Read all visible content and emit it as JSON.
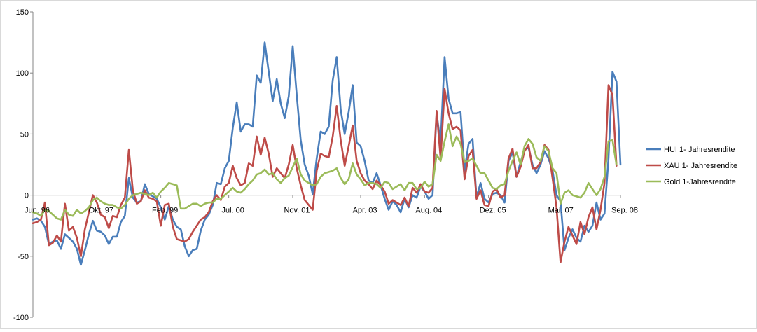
{
  "chart_data": {
    "type": "line",
    "ylim": [
      -100,
      150
    ],
    "y_ticks": [
      -100,
      -50,
      0,
      50,
      100,
      150
    ],
    "x_tick_labels": [
      {
        "label": "Jun. 96",
        "index": 0
      },
      {
        "label": "Okt. 97",
        "index": 16
      },
      {
        "label": "Feb. 99",
        "index": 32
      },
      {
        "label": "Jul. 00",
        "index": 49
      },
      {
        "label": "Nov. 01",
        "index": 65
      },
      {
        "label": "Apr. 03",
        "index": 82
      },
      {
        "label": "Aug. 04",
        "index": 98
      },
      {
        "label": "Dez. 05",
        "index": 114
      },
      {
        "label": "Mai. 07",
        "index": 131
      },
      {
        "label": "Sep. 08",
        "index": 147
      }
    ],
    "grid": false,
    "legend_position": "right",
    "series": [
      {
        "name": "HUI 1- Jahresrendite",
        "color": "#4a7ebb",
        "values": [
          -20,
          -19,
          -21,
          -26,
          -40,
          -38,
          -37,
          -44,
          -32,
          -35,
          -38,
          -44,
          -57,
          -45,
          -32,
          -21,
          -29,
          -30,
          -33,
          -40,
          -34,
          -34,
          -22,
          -17,
          14,
          -2,
          -6,
          -5,
          9,
          1,
          -1,
          -3,
          -10,
          -20,
          -9,
          -20,
          -26,
          -28,
          -42,
          -50,
          -45,
          -44,
          -29,
          -20,
          -16,
          -8,
          10,
          9,
          22,
          28,
          55,
          76,
          52,
          58,
          58,
          56,
          98,
          92,
          125,
          101,
          77,
          95,
          75,
          63,
          81,
          122,
          82,
          45,
          25,
          16,
          1,
          30,
          52,
          50,
          56,
          94,
          113,
          70,
          50,
          68,
          90,
          43,
          40,
          28,
          12,
          10,
          18,
          8,
          -3,
          -12,
          -5,
          -8,
          -14,
          -3,
          -10,
          0,
          -2,
          7,
          3,
          -3,
          0,
          67,
          42,
          113,
          79,
          67,
          67,
          68,
          20,
          42,
          46,
          -2,
          10,
          -3,
          -6,
          1,
          2,
          0,
          -6,
          28,
          35,
          15,
          27,
          37,
          39,
          25,
          18,
          25,
          36,
          30,
          20,
          0,
          -5,
          -45,
          -35,
          -28,
          -35,
          -38,
          -25,
          -30,
          -25,
          -6,
          -20,
          -15,
          30,
          101,
          93,
          25
        ]
      },
      {
        "name": "XAU 1- Jahresrendite",
        "color": "#be4b48",
        "values": [
          -23,
          -22,
          -20,
          -6,
          -41,
          -39,
          -33,
          -38,
          -7,
          -29,
          -26,
          -35,
          -50,
          -28,
          -14,
          0,
          -6,
          -16,
          -18,
          -27,
          -17,
          -18,
          -8,
          -2,
          37,
          4,
          -7,
          -5,
          4,
          -2,
          -3,
          -5,
          -25,
          -8,
          -7,
          -26,
          -36,
          -37,
          -38,
          -36,
          -30,
          -25,
          -20,
          -18,
          -14,
          -5,
          0,
          -4,
          7,
          10,
          24,
          14,
          8,
          10,
          26,
          24,
          48,
          33,
          47,
          34,
          15,
          22,
          18,
          14,
          25,
          41,
          22,
          8,
          -4,
          -8,
          -12,
          20,
          34,
          32,
          31,
          48,
          73,
          45,
          24,
          40,
          57,
          28,
          18,
          12,
          9,
          5,
          12,
          8,
          3,
          -7,
          -4,
          -6,
          -8,
          -2,
          -9,
          6,
          2,
          9,
          3,
          2,
          6,
          69,
          30,
          87,
          67,
          54,
          56,
          53,
          13,
          32,
          37,
          -3,
          4,
          -8,
          -9,
          3,
          5,
          -2,
          0,
          30,
          38,
          15,
          23,
          36,
          41,
          22,
          22,
          27,
          41,
          37,
          14,
          -10,
          -55,
          -38,
          -26,
          -33,
          -40,
          -22,
          -32,
          -18,
          -10,
          -28,
          -12,
          10,
          90,
          82,
          24
        ]
      },
      {
        "name": "Gold 1-Jahresrendite",
        "color": "#9bbb59",
        "values": [
          -14,
          -15,
          -17,
          -12,
          -13,
          -16,
          -19,
          -20,
          -12,
          -16,
          -17,
          -12,
          -15,
          -13,
          -10,
          -4,
          -2,
          -5,
          -7,
          -8,
          -8,
          -10,
          -11,
          -8,
          -3,
          0,
          1,
          2,
          1,
          0,
          2,
          -2,
          3,
          6,
          10,
          9,
          8,
          -11,
          -11,
          -9,
          -7,
          -7,
          -9,
          -7,
          -6,
          -6,
          -3,
          -3,
          0,
          3,
          6,
          3,
          2,
          5,
          9,
          12,
          17,
          18,
          21,
          17,
          18,
          13,
          10,
          14,
          16,
          23,
          30,
          17,
          12,
          10,
          8,
          9,
          15,
          18,
          19,
          20,
          22,
          14,
          9,
          13,
          26,
          17,
          13,
          8,
          10,
          10,
          9,
          6,
          11,
          10,
          5,
          7,
          9,
          4,
          10,
          10,
          5,
          6,
          11,
          7,
          9,
          33,
          28,
          44,
          58,
          40,
          48,
          42,
          27,
          28,
          30,
          24,
          18,
          18,
          12,
          6,
          5,
          8,
          9,
          20,
          28,
          35,
          25,
          40,
          46,
          42,
          31,
          28,
          40,
          36,
          22,
          18,
          -7,
          2,
          4,
          0,
          -1,
          -2,
          2,
          10,
          5,
          0,
          5,
          15,
          44,
          45,
          25
        ]
      }
    ]
  }
}
